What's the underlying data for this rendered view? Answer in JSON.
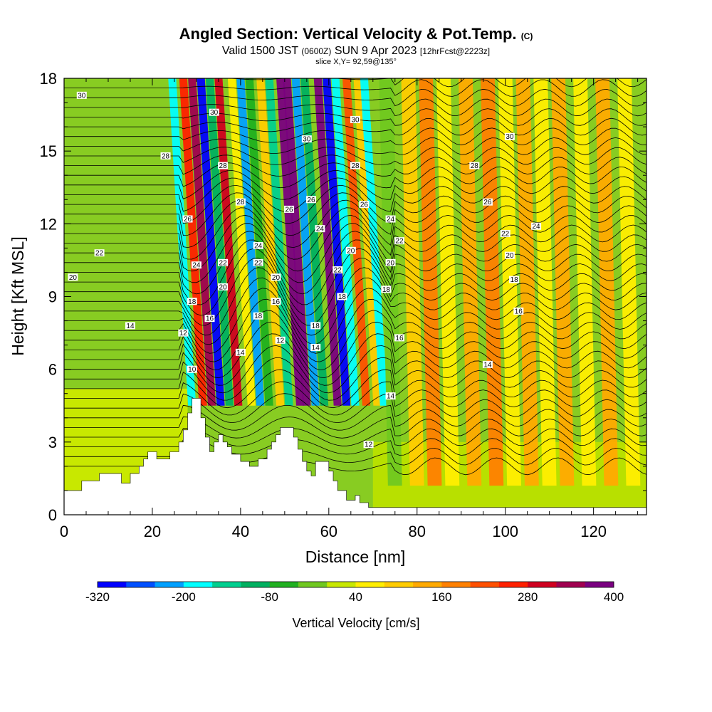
{
  "title": {
    "main": "Angled Section: Vertical Velocity & Pot.Temp.",
    "main_unit": "(C)",
    "valid_prefix": "Valid 1500 JST",
    "valid_utc": "(0600Z)",
    "valid_date": "SUN 9 Apr 2023",
    "forecast": "[12hrFcst@2223z]",
    "slice": "slice X,Y= 92,59@135°"
  },
  "chart_data": {
    "type": "heatmap",
    "xlabel": "Distance [nm]",
    "ylabel": "Height [Kft MSL]",
    "xlim": [
      0,
      132
    ],
    "ylim": [
      0,
      18
    ],
    "x_ticks": [
      0,
      20,
      40,
      60,
      80,
      100,
      120
    ],
    "y_ticks": [
      0,
      3,
      6,
      9,
      12,
      15,
      18
    ],
    "colorbar": {
      "label": "Vertical Velocity [cm/s]",
      "range": [
        -320,
        400
      ],
      "tick_labels": [
        -320,
        -200,
        -80,
        40,
        160,
        280,
        400
      ],
      "colors": [
        "#0000ff",
        "#0050ff",
        "#00a0ff",
        "#00ffff",
        "#00d090",
        "#00b060",
        "#20b020",
        "#70c820",
        "#c8e800",
        "#ffee00",
        "#ffcc00",
        "#ffaa00",
        "#ff8000",
        "#ff5000",
        "#ff2000",
        "#d00020",
        "#a00050",
        "#7a0080"
      ]
    },
    "wave_columns": [
      {
        "x": 29.0,
        "w": -200
      },
      {
        "x": 31.5,
        "w": 260
      },
      {
        "x": 33.5,
        "w": 340
      },
      {
        "x": 35.5,
        "w": -300
      },
      {
        "x": 37.5,
        "w": -120
      },
      {
        "x": 39.5,
        "w": 300
      },
      {
        "x": 42.5,
        "w": 60
      },
      {
        "x": 44.5,
        "w": -220
      },
      {
        "x": 46.5,
        "w": -80
      },
      {
        "x": 49.0,
        "w": 80
      },
      {
        "x": 51.0,
        "w": -150
      },
      {
        "x": 53.5,
        "w": 360
      },
      {
        "x": 55.0,
        "w": 400
      },
      {
        "x": 57.0,
        "w": -240
      },
      {
        "x": 59.0,
        "w": -100
      },
      {
        "x": 62.0,
        "w": 360
      },
      {
        "x": 64.0,
        "w": -300
      },
      {
        "x": 66.0,
        "w": -180
      },
      {
        "x": 68.5,
        "w": 200
      },
      {
        "x": 71.0,
        "w": 80
      },
      {
        "x": 72.5,
        "w": -200
      },
      {
        "x": 75.0,
        "w": -40
      },
      {
        "x": 80.0,
        "w": 80
      },
      {
        "x": 84.0,
        "w": 160
      },
      {
        "x": 88.0,
        "w": 40
      },
      {
        "x": 93.0,
        "w": 140
      },
      {
        "x": 98.0,
        "w": 160
      },
      {
        "x": 102.0,
        "w": 40
      },
      {
        "x": 106.0,
        "w": 140
      },
      {
        "x": 110.0,
        "w": 60
      },
      {
        "x": 114.0,
        "w": 140
      },
      {
        "x": 119.0,
        "w": 60
      },
      {
        "x": 124.0,
        "w": 120
      },
      {
        "x": 129.0,
        "w": 60
      }
    ],
    "terrain": [
      [
        0,
        1.0
      ],
      [
        4,
        1.0
      ],
      [
        4,
        1.4
      ],
      [
        8,
        1.4
      ],
      [
        8,
        1.7
      ],
      [
        13,
        1.7
      ],
      [
        13,
        1.3
      ],
      [
        15,
        1.3
      ],
      [
        15,
        1.7
      ],
      [
        17,
        1.7
      ],
      [
        17,
        2.0
      ],
      [
        18,
        2.0
      ],
      [
        18,
        2.3
      ],
      [
        19,
        2.3
      ],
      [
        19,
        2.6
      ],
      [
        21,
        2.6
      ],
      [
        21,
        2.3
      ],
      [
        24,
        2.3
      ],
      [
        24,
        2.6
      ],
      [
        26,
        2.6
      ],
      [
        26,
        3.0
      ],
      [
        27,
        3.0
      ],
      [
        27,
        3.5
      ],
      [
        28,
        3.5
      ],
      [
        28,
        4.2
      ],
      [
        29,
        4.2
      ],
      [
        29,
        4.8
      ],
      [
        31,
        4.8
      ],
      [
        31,
        4.0
      ],
      [
        32,
        4.0
      ],
      [
        32,
        3.2
      ],
      [
        33,
        3.2
      ],
      [
        33,
        2.6
      ],
      [
        34,
        2.6
      ],
      [
        34,
        3.0
      ],
      [
        35,
        3.0
      ],
      [
        35,
        3.3
      ],
      [
        36,
        3.3
      ],
      [
        36,
        3.0
      ],
      [
        37,
        3.0
      ],
      [
        37,
        2.8
      ],
      [
        38,
        2.8
      ],
      [
        38,
        2.5
      ],
      [
        40,
        2.5
      ],
      [
        40,
        2.2
      ],
      [
        42,
        2.2
      ],
      [
        42,
        2.0
      ],
      [
        44,
        2.0
      ],
      [
        44,
        2.3
      ],
      [
        46,
        2.3
      ],
      [
        46,
        2.7
      ],
      [
        47,
        2.7
      ],
      [
        47,
        3.0
      ],
      [
        48,
        3.0
      ],
      [
        48,
        3.3
      ],
      [
        49,
        3.3
      ],
      [
        49,
        3.6
      ],
      [
        52,
        3.6
      ],
      [
        52,
        3.2
      ],
      [
        53,
        3.2
      ],
      [
        53,
        2.7
      ],
      [
        54,
        2.7
      ],
      [
        54,
        2.2
      ],
      [
        55,
        2.2
      ],
      [
        55,
        1.8
      ],
      [
        56,
        1.8
      ],
      [
        56,
        1.6
      ],
      [
        57,
        1.6
      ],
      [
        57,
        2.2
      ],
      [
        60,
        2.2
      ],
      [
        60,
        1.8
      ],
      [
        61,
        1.8
      ],
      [
        61,
        1.4
      ],
      [
        62,
        1.4
      ],
      [
        62,
        1.0
      ],
      [
        64,
        1.0
      ],
      [
        64,
        0.6
      ],
      [
        66,
        0.6
      ],
      [
        66,
        0.8
      ],
      [
        67,
        0.8
      ],
      [
        67,
        0.5
      ],
      [
        69,
        0.5
      ],
      [
        69,
        0.3
      ],
      [
        132,
        0.3
      ]
    ],
    "theta_contour_labels": [
      {
        "x": 4,
        "y": 17.3,
        "v": 30
      },
      {
        "x": 23,
        "y": 14.8,
        "v": 28
      },
      {
        "x": 8,
        "y": 10.8,
        "v": 22
      },
      {
        "x": 2,
        "y": 9.8,
        "v": 20
      },
      {
        "x": 15,
        "y": 7.8,
        "v": 14
      },
      {
        "x": 27,
        "y": 7.5,
        "v": 12
      },
      {
        "x": 29,
        "y": 6.0,
        "v": 10
      },
      {
        "x": 28,
        "y": 12.2,
        "v": 26
      },
      {
        "x": 30,
        "y": 10.3,
        "v": 24
      },
      {
        "x": 29,
        "y": 8.8,
        "v": 18
      },
      {
        "x": 33,
        "y": 8.1,
        "v": 16
      },
      {
        "x": 34,
        "y": 16.6,
        "v": 30
      },
      {
        "x": 36,
        "y": 14.4,
        "v": 28
      },
      {
        "x": 36,
        "y": 10.4,
        "v": 22
      },
      {
        "x": 36,
        "y": 9.4,
        "v": 20
      },
      {
        "x": 40,
        "y": 12.9,
        "v": 28
      },
      {
        "x": 40,
        "y": 6.7,
        "v": 14
      },
      {
        "x": 44,
        "y": 11.1,
        "v": 24
      },
      {
        "x": 44,
        "y": 10.4,
        "v": 22
      },
      {
        "x": 44,
        "y": 8.2,
        "v": 18
      },
      {
        "x": 48,
        "y": 9.8,
        "v": 20
      },
      {
        "x": 48,
        "y": 8.8,
        "v": 16
      },
      {
        "x": 49,
        "y": 7.2,
        "v": 12
      },
      {
        "x": 51,
        "y": 12.6,
        "v": 26
      },
      {
        "x": 55,
        "y": 15.5,
        "v": 30
      },
      {
        "x": 56,
        "y": 13.0,
        "v": 26
      },
      {
        "x": 58,
        "y": 11.8,
        "v": 24
      },
      {
        "x": 57,
        "y": 7.8,
        "v": 18
      },
      {
        "x": 57,
        "y": 6.9,
        "v": 14
      },
      {
        "x": 62,
        "y": 10.1,
        "v": 22
      },
      {
        "x": 63,
        "y": 9.0,
        "v": 18
      },
      {
        "x": 65,
        "y": 10.9,
        "v": 20
      },
      {
        "x": 66,
        "y": 16.3,
        "v": 30
      },
      {
        "x": 66,
        "y": 14.4,
        "v": 28
      },
      {
        "x": 68,
        "y": 12.8,
        "v": 26
      },
      {
        "x": 74,
        "y": 12.2,
        "v": 24
      },
      {
        "x": 76,
        "y": 11.3,
        "v": 22
      },
      {
        "x": 74,
        "y": 10.4,
        "v": 20
      },
      {
        "x": 73,
        "y": 9.3,
        "v": 18
      },
      {
        "x": 76,
        "y": 7.3,
        "v": 16
      },
      {
        "x": 74,
        "y": 4.9,
        "v": 14
      },
      {
        "x": 69,
        "y": 2.9,
        "v": 12
      },
      {
        "x": 101,
        "y": 15.6,
        "v": 30
      },
      {
        "x": 93,
        "y": 14.4,
        "v": 28
      },
      {
        "x": 96,
        "y": 12.9,
        "v": 26
      },
      {
        "x": 100,
        "y": 11.6,
        "v": 22
      },
      {
        "x": 107,
        "y": 11.9,
        "v": 24
      },
      {
        "x": 101,
        "y": 10.7,
        "v": 20
      },
      {
        "x": 102,
        "y": 9.7,
        "v": 18
      },
      {
        "x": 103,
        "y": 8.4,
        "v": 16
      },
      {
        "x": 96,
        "y": 6.2,
        "v": 14
      }
    ]
  }
}
